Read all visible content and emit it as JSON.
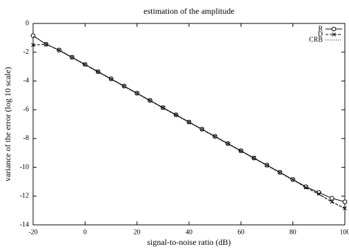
{
  "chart_data": {
    "type": "line",
    "title": "estimation of the amplitude",
    "x_label": "signal-to-noise ratio (dB)",
    "y_label": "variance of the error (log 10 scale)",
    "x": [
      -20,
      -15,
      -10,
      -5,
      0,
      5,
      10,
      15,
      20,
      25,
      30,
      35,
      40,
      45,
      50,
      55,
      60,
      65,
      70,
      75,
      80,
      85,
      90,
      95,
      100
    ],
    "series": [
      {
        "name": "R",
        "color": "#000000",
        "linestyle": "solid",
        "marker": "circle",
        "values": [
          -0.85,
          -1.45,
          -1.85,
          -2.35,
          -2.85,
          -3.35,
          -3.85,
          -4.35,
          -4.85,
          -5.35,
          -5.85,
          -6.35,
          -6.85,
          -7.35,
          -7.85,
          -8.35,
          -8.85,
          -9.35,
          -9.85,
          -10.35,
          -10.85,
          -11.35,
          -11.75,
          -12.15,
          -12.4
        ]
      },
      {
        "name": "D",
        "color": "#000000",
        "linestyle": "dashed",
        "marker": "cross",
        "values": [
          -1.5,
          -1.45,
          -1.85,
          -2.35,
          -2.85,
          -3.35,
          -3.85,
          -4.35,
          -4.85,
          -5.35,
          -5.85,
          -6.35,
          -6.85,
          -7.35,
          -7.85,
          -8.35,
          -8.85,
          -9.35,
          -9.85,
          -10.35,
          -10.85,
          -11.4,
          -11.85,
          -12.4,
          -12.85
        ]
      },
      {
        "name": "CRB",
        "color": "#000000",
        "linestyle": "dotted",
        "marker": "none",
        "values": [
          -0.9,
          -1.4,
          -1.9,
          -2.4,
          -2.9,
          -3.4,
          -3.9,
          -4.4,
          -4.9,
          -5.4,
          -5.9,
          -6.4,
          -6.9,
          -7.4,
          -7.9,
          -8.4,
          -8.9,
          -9.4,
          -9.9,
          -10.4,
          -10.9,
          -11.4,
          -11.9,
          -12.4,
          -12.9
        ]
      }
    ],
    "xlim": [
      -20,
      100
    ],
    "xticks": [
      -20,
      0,
      20,
      40,
      60,
      80,
      100
    ],
    "ylim": [
      -14,
      0
    ],
    "yticks": [
      -14,
      -12,
      -10,
      -8,
      -6,
      -4,
      -2,
      0
    ],
    "grid": false,
    "legend": "top-right"
  }
}
